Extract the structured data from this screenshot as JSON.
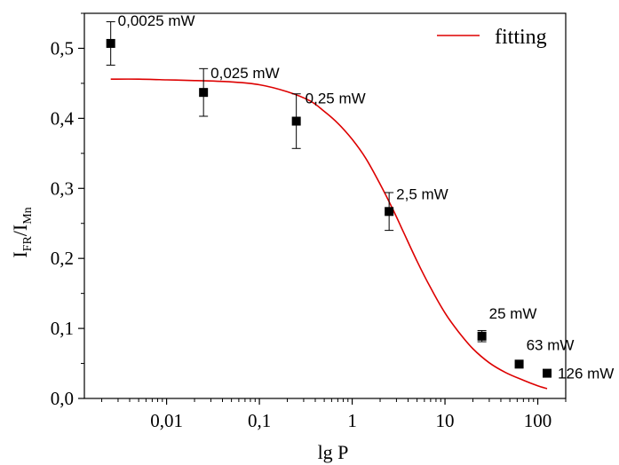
{
  "chart_data": {
    "type": "scatter",
    "xlabel": "lg P",
    "ylabel": {
      "main": "I",
      "sub1": "FR",
      "slash": "/I",
      "sub2": "Mn"
    },
    "x_scale": "log",
    "xlim": [
      0.0013,
      200
    ],
    "ylim": [
      0.0,
      0.55
    ],
    "x_ticks": [
      0.01,
      0.1,
      1,
      10,
      100
    ],
    "x_tick_labels": [
      "0,01",
      "0,1",
      "1",
      "10",
      "100"
    ],
    "y_ticks": [
      0.0,
      0.1,
      0.2,
      0.3,
      0.4,
      0.5
    ],
    "y_tick_labels": [
      "0,0",
      "0,1",
      "0,2",
      "0,3",
      "0,4",
      "0,5"
    ],
    "grid": false,
    "legend_position": "top-right",
    "series": [
      {
        "type": "scatter",
        "color": "#000000",
        "marker": "square",
        "points": [
          {
            "x": 0.0025,
            "y": 0.507,
            "err": 0.031,
            "label": "0,0025 mW"
          },
          {
            "x": 0.025,
            "y": 0.437,
            "err": 0.034,
            "label": "0,025 mW"
          },
          {
            "x": 0.25,
            "y": 0.396,
            "err": 0.039,
            "label": "0,25 mW"
          },
          {
            "x": 2.5,
            "y": 0.267,
            "err": 0.027,
            "label": "2,5 mW"
          },
          {
            "x": 25,
            "y": 0.089,
            "err": 0.008,
            "label": "25 mW"
          },
          {
            "x": 63,
            "y": 0.049,
            "err": 0.0,
            "label": "63 mW"
          },
          {
            "x": 126,
            "y": 0.036,
            "err": 0.0,
            "label": "126 mW"
          }
        ]
      },
      {
        "name": "fitting",
        "type": "line",
        "color": "#dd0000",
        "x": [
          0.0025,
          0.005,
          0.01,
          0.02,
          0.05,
          0.1,
          0.2,
          0.35,
          0.5,
          0.7,
          1.0,
          1.4,
          2.0,
          2.7,
          3.5,
          5.0,
          7.0,
          10,
          14,
          20,
          30,
          45,
          70,
          100,
          126
        ],
        "y": [
          0.456,
          0.456,
          0.455,
          0.454,
          0.452,
          0.448,
          0.438,
          0.425,
          0.41,
          0.393,
          0.37,
          0.343,
          0.306,
          0.272,
          0.24,
          0.196,
          0.158,
          0.122,
          0.095,
          0.071,
          0.051,
          0.037,
          0.026,
          0.018,
          0.014
        ]
      }
    ]
  }
}
